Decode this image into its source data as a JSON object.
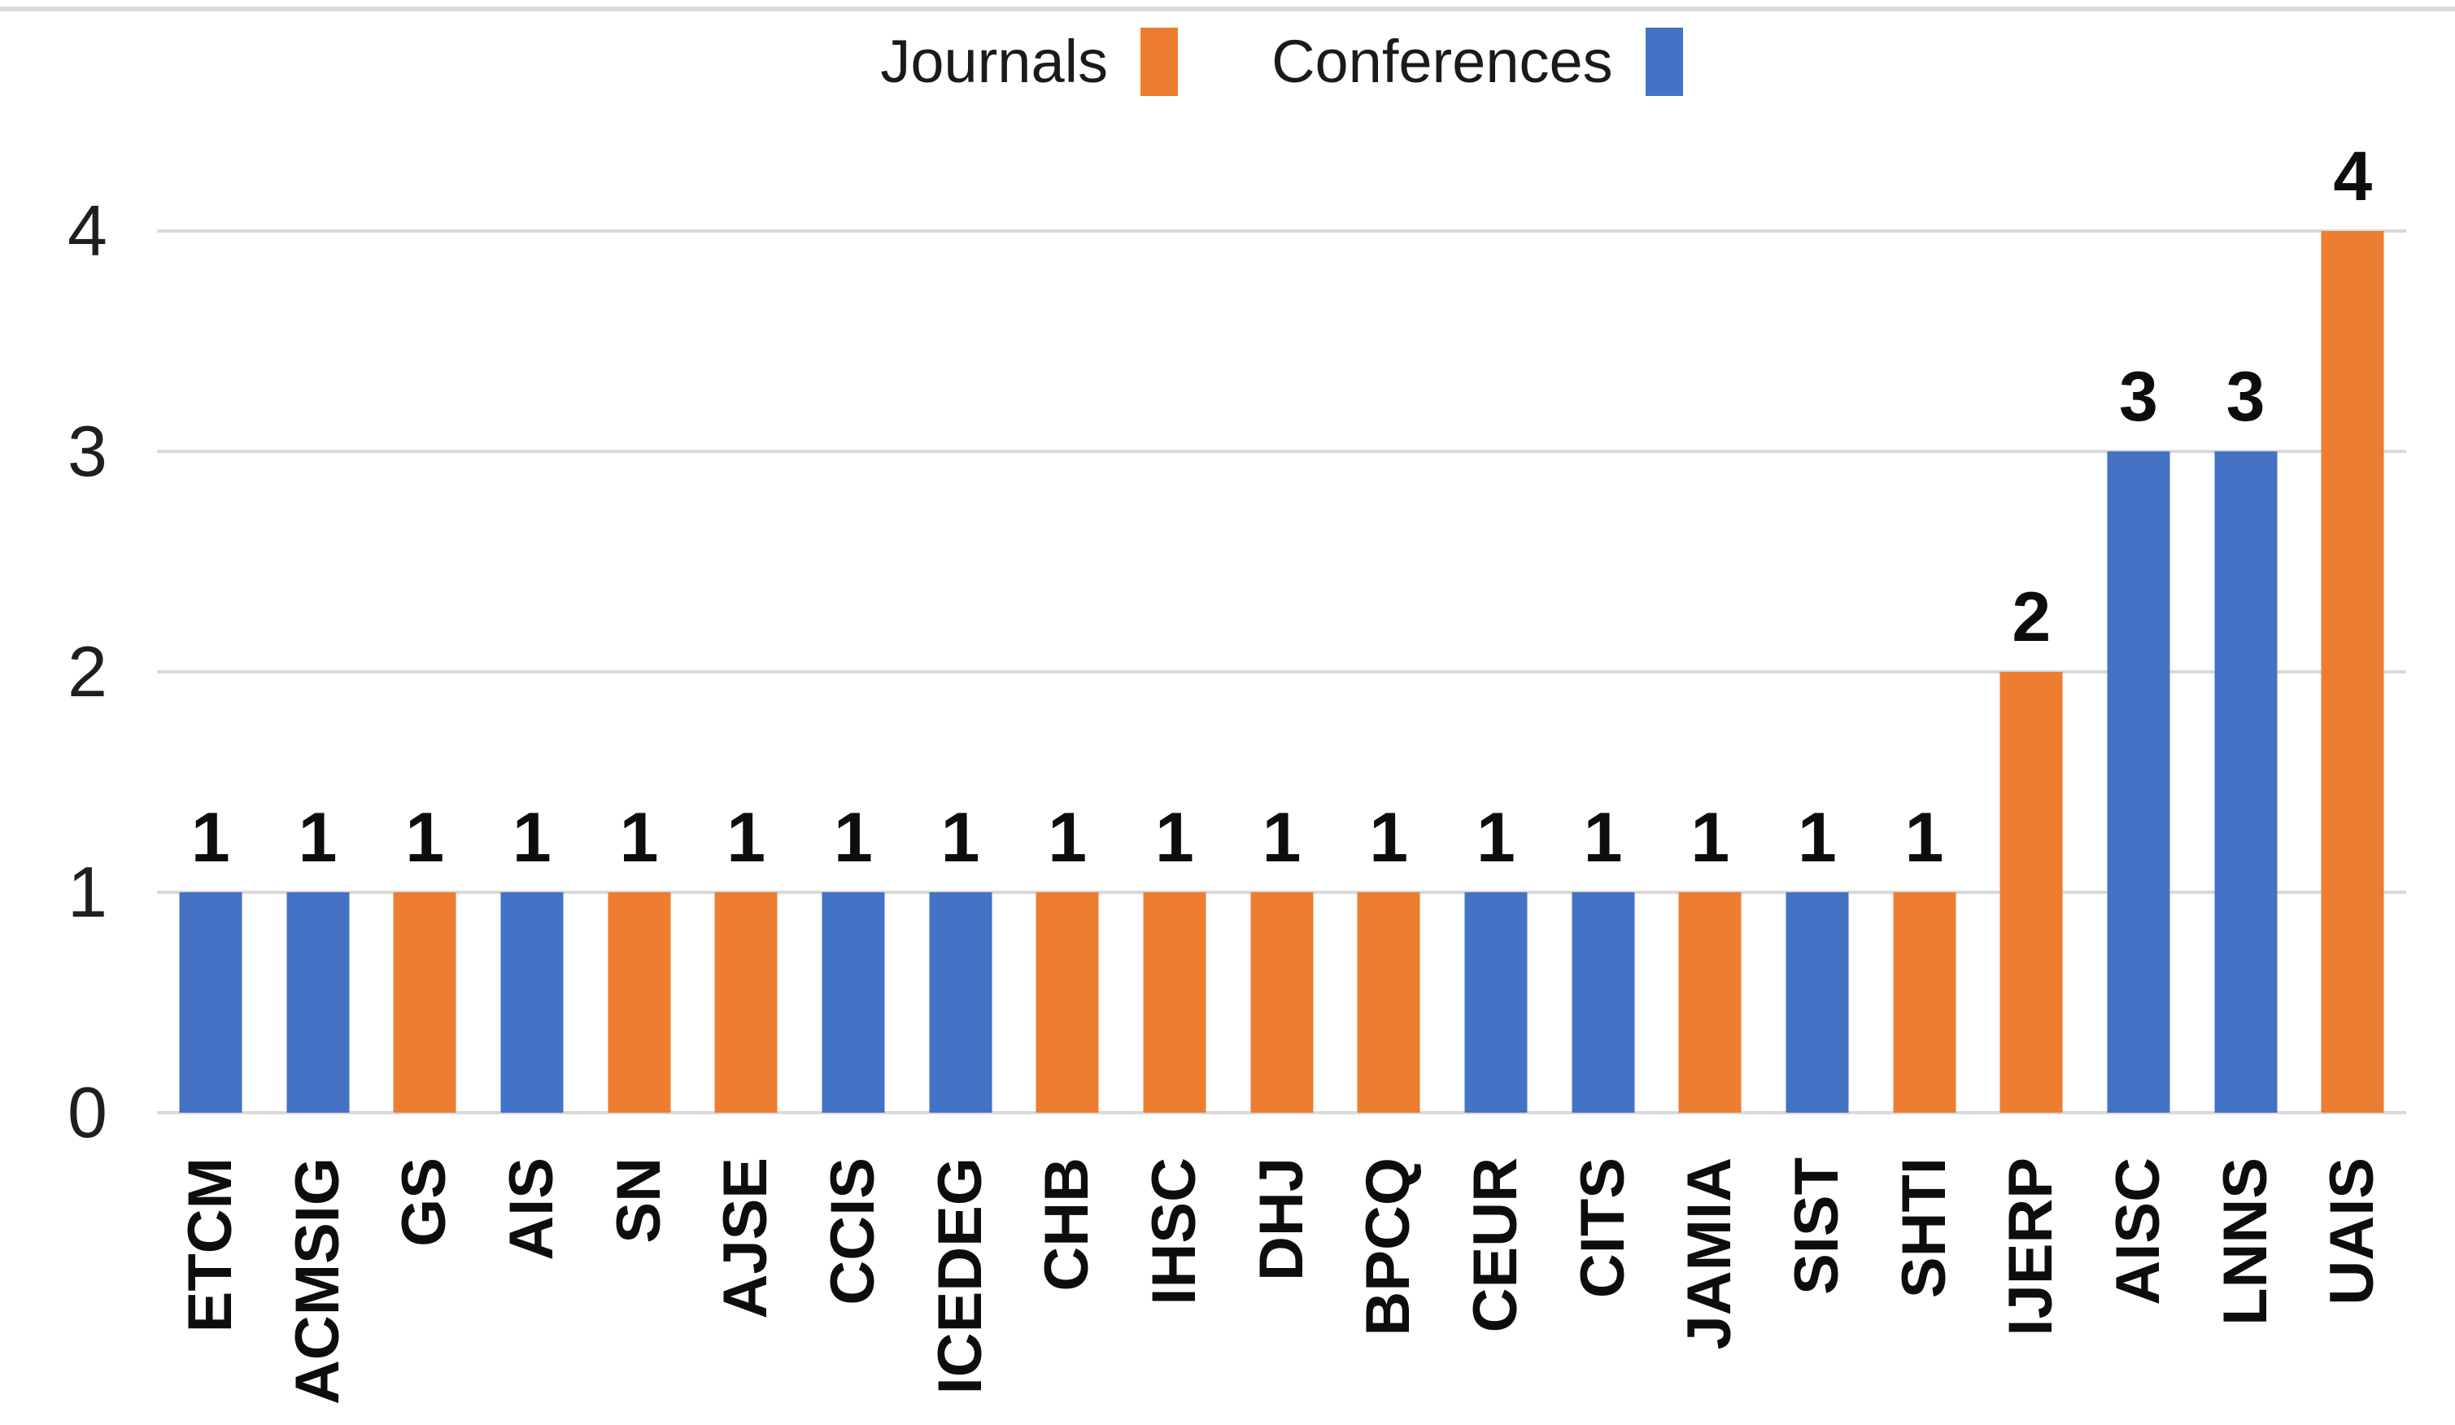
{
  "page": {
    "background_color": "#ffffff",
    "top_border_color": "#dadada"
  },
  "legend": {
    "position": "top-center",
    "items": [
      {
        "label": "Journals",
        "color": "#ED7D31"
      },
      {
        "label": "Conferences",
        "color": "#4472C4"
      }
    ]
  },
  "chart_data": {
    "type": "bar",
    "title": "",
    "xlabel": "",
    "ylabel": "",
    "ylim": [
      0,
      4
    ],
    "yticks": [
      0,
      1,
      2,
      3,
      4
    ],
    "grid": true,
    "gridline_color": "#d9d9d9",
    "bar_value_labels_shown": true,
    "legend_entries": [
      "Journals",
      "Conferences"
    ],
    "colors": {
      "Journals": "#ED7D31",
      "Conferences": "#4472C4"
    },
    "categories": [
      "ETCM",
      "ACMSIG",
      "GS",
      "AIS",
      "SN",
      "AJSE",
      "CCIS",
      "ICEDEG",
      "CHB",
      "IHSC",
      "DHJ",
      "BPCQ",
      "CEUR",
      "CITS",
      "JAMIA",
      "SIST",
      "SHTI",
      "IJERP",
      "AISC",
      "LNNS",
      "UAIS"
    ],
    "values": [
      1,
      1,
      1,
      1,
      1,
      1,
      1,
      1,
      1,
      1,
      1,
      1,
      1,
      1,
      1,
      1,
      1,
      2,
      3,
      3,
      4
    ],
    "series_by_category": [
      "Conferences",
      "Conferences",
      "Journals",
      "Conferences",
      "Journals",
      "Journals",
      "Conferences",
      "Conferences",
      "Journals",
      "Journals",
      "Journals",
      "Journals",
      "Conferences",
      "Conferences",
      "Journals",
      "Conferences",
      "Journals",
      "Journals",
      "Conferences",
      "Conferences",
      "Journals"
    ]
  }
}
